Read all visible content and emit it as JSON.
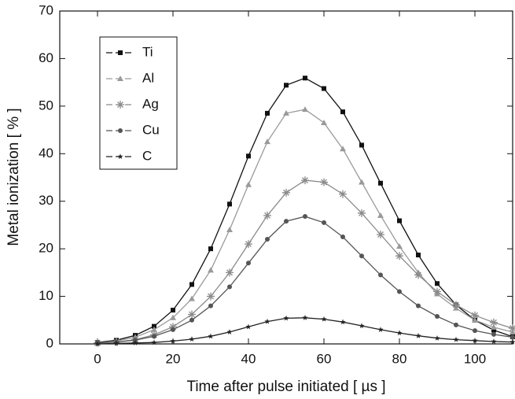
{
  "chart_data": {
    "type": "line",
    "x_label": "Time after pulse initiated [ µs ]",
    "y_label": "Metal ionization [ % ]",
    "x": [
      0,
      5,
      10,
      15,
      20,
      25,
      30,
      35,
      40,
      45,
      50,
      55,
      60,
      65,
      70,
      75,
      80,
      85,
      90,
      95,
      100,
      105,
      110
    ],
    "series": [
      {
        "name": "Ti",
        "color": "#111111",
        "marker": "square",
        "values": [
          0.3,
          0.77,
          1.8,
          3.7,
          7.1,
          12.5,
          20.0,
          29.4,
          39.5,
          48.5,
          54.4,
          55.9,
          53.7,
          48.8,
          41.8,
          33.8,
          25.9,
          18.7,
          12.7,
          8.2,
          5.0,
          2.9,
          1.5
        ]
      },
      {
        "name": "Al",
        "color": "#9a9a9a",
        "marker": "triangle",
        "values": [
          0.2,
          0.6,
          1.4,
          3.0,
          5.5,
          9.5,
          15.5,
          24,
          33.5,
          42.5,
          48.5,
          49.3,
          46.5,
          41,
          34,
          27,
          20.5,
          15,
          10.5,
          7.5,
          5,
          3.5,
          2.5
        ]
      },
      {
        "name": "Ag",
        "color": "#8a8a8a",
        "marker": "asterisk",
        "values": [
          0.2,
          0.4,
          0.9,
          1.9,
          3.6,
          6.2,
          10,
          15,
          21,
          27,
          31.8,
          34.4,
          34,
          31.5,
          27.5,
          23,
          18.5,
          14.5,
          11,
          8.2,
          6,
          4.5,
          3.3
        ]
      },
      {
        "name": "Cu",
        "color": "#555555",
        "marker": "circle",
        "values": [
          0.2,
          0.4,
          0.8,
          1.6,
          3,
          5,
          8,
          12,
          17,
          22,
          25.8,
          26.8,
          25.5,
          22.5,
          18.5,
          14.5,
          11,
          8,
          5.8,
          4,
          2.8,
          2,
          1.4
        ]
      },
      {
        "name": "C",
        "color": "#222222",
        "marker": "star",
        "values": [
          0,
          0.1,
          0.2,
          0.3,
          0.6,
          1,
          1.6,
          2.5,
          3.6,
          4.7,
          5.4,
          5.5,
          5.2,
          4.6,
          3.8,
          3,
          2.3,
          1.7,
          1.2,
          0.9,
          0.7,
          0.5,
          0.4
        ]
      }
    ],
    "xlim": [
      -10,
      110
    ],
    "xticks": [
      0,
      20,
      40,
      60,
      80,
      100
    ],
    "ylim": [
      0,
      70
    ],
    "yticks": [
      0,
      10,
      20,
      30,
      40,
      50,
      60,
      70
    ],
    "legend": "upper-left"
  }
}
